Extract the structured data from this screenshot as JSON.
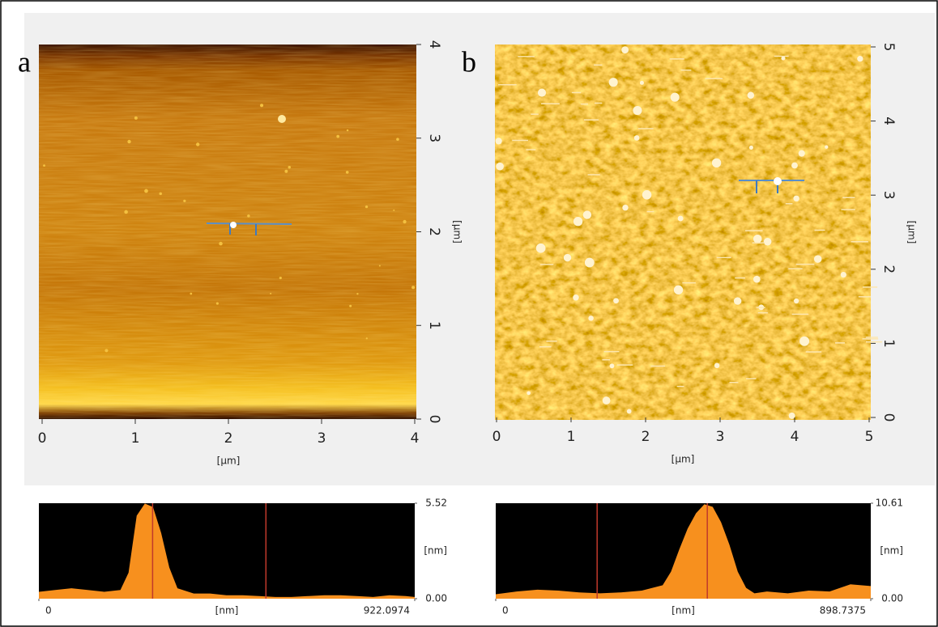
{
  "chart_data": [
    {
      "type": "image",
      "panel": "a",
      "xlabel": "[µm]",
      "ylabel": "[µm]",
      "xlim": [
        0,
        4
      ],
      "ylim": [
        0,
        4
      ],
      "xticks": [
        0,
        1,
        2,
        3,
        4
      ],
      "yticks": [
        0,
        1,
        2,
        3,
        4
      ]
    },
    {
      "type": "image",
      "panel": "b",
      "xlabel": "[µm]",
      "ylabel": "[µm]",
      "xlim": [
        0,
        5
      ],
      "ylim": [
        0,
        5
      ],
      "xticks": [
        0,
        1,
        2,
        3,
        4,
        5
      ],
      "yticks": [
        0,
        1,
        2,
        3,
        4,
        5
      ]
    },
    {
      "type": "area",
      "xlabel": "[nm]",
      "ylabel": "[nm]",
      "color": "#f7901e",
      "cursor_color": "#c0392b",
      "x": [
        0,
        40,
        80,
        120,
        160,
        200,
        220,
        240,
        260,
        280,
        300,
        320,
        340,
        380,
        420,
        460,
        500,
        540,
        580,
        620,
        660,
        700,
        740,
        780,
        820,
        860,
        900,
        922.0974
      ],
      "values": [
        0.4,
        0.5,
        0.6,
        0.5,
        0.4,
        0.5,
        1.5,
        4.8,
        5.5,
        5.3,
        3.8,
        1.8,
        0.6,
        0.3,
        0.3,
        0.2,
        0.2,
        0.15,
        0.1,
        0.1,
        0.15,
        0.2,
        0.2,
        0.15,
        0.1,
        0.2,
        0.15,
        0.1
      ],
      "cursors": [
        279,
        557
      ],
      "xlim": [
        0,
        922.0974
      ],
      "ylim": [
        0,
        5.52
      ],
      "xticks": [
        0,
        922.0974
      ],
      "yticks": [
        {
          "value": 0,
          "label": "0.00"
        },
        5.52
      ]
    },
    {
      "type": "area",
      "xlabel": "[nm]",
      "ylabel": "[nm]",
      "color": "#f7901e",
      "cursor_color": "#c0392b",
      "x": [
        0,
        50,
        100,
        150,
        200,
        250,
        300,
        350,
        400,
        420,
        440,
        460,
        480,
        500,
        520,
        540,
        560,
        580,
        600,
        620,
        650,
        700,
        750,
        800,
        850,
        898.7375
      ],
      "values": [
        0.5,
        0.8,
        1.0,
        0.9,
        0.7,
        0.6,
        0.7,
        0.9,
        1.5,
        3.0,
        5.5,
        7.8,
        9.5,
        10.5,
        10.2,
        8.5,
        6.0,
        3.0,
        1.2,
        0.6,
        0.8,
        0.6,
        0.9,
        0.8,
        1.6,
        1.4
      ],
      "cursors": [
        243,
        507
      ],
      "xlim": [
        0,
        898.7375
      ],
      "ylim": [
        0,
        10.61
      ],
      "xticks": [
        0,
        898.7375
      ],
      "yticks": [
        {
          "value": 0,
          "label": "0.00"
        },
        10.61
      ]
    }
  ]
}
